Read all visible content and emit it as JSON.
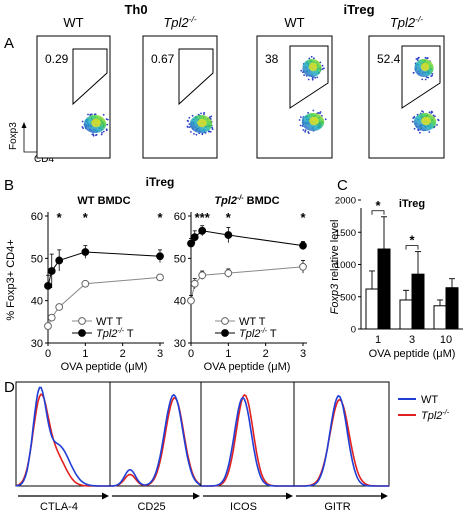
{
  "panels": {
    "A": {
      "letter": "A",
      "header_th0": "Th0",
      "header_itreg": "iTreg",
      "ylabel": "Foxp3",
      "xlabel": "CD4",
      "plots": [
        {
          "title": "WT",
          "italic": false,
          "value": "0.29"
        },
        {
          "title": "Tpl2",
          "sup": "-/-",
          "italic": true,
          "value": "0.67"
        },
        {
          "title": "WT",
          "italic": false,
          "value": "38"
        },
        {
          "title": "Tpl2",
          "sup": "-/-",
          "italic": true,
          "value": "52.4"
        }
      ]
    },
    "B": {
      "letter": "B",
      "header": "iTreg",
      "ylabel": "% Foxp3+ CD4+"
    },
    "C": {
      "letter": "C",
      "title": "iTreg"
    },
    "D": {
      "letter": "D",
      "legend": [
        {
          "label": "WT",
          "color": "#1f3fd6"
        },
        {
          "label": "Tpl2",
          "sup": "-/-",
          "italic": true,
          "color": "#e02020"
        }
      ],
      "markers": [
        "CTLA-4",
        "CD25",
        "ICOS",
        "GITR"
      ]
    }
  },
  "chart_data": [
    {
      "type": "line",
      "title": "WT BMDC",
      "xlabel": "OVA peptide (μM)",
      "ylabel": "% Foxp3+ CD4+",
      "xlim": [
        0,
        3
      ],
      "ylim": [
        30,
        60
      ],
      "xticks": [
        0,
        1,
        2,
        3
      ],
      "yticks": [
        30,
        40,
        50,
        60
      ],
      "x": [
        0,
        0.1,
        0.3,
        1,
        3
      ],
      "series": [
        {
          "name": "WT T",
          "marker": "open-circle",
          "values": [
            34,
            36,
            38.5,
            44,
            45.5
          ],
          "errors": [
            0.6,
            0.6,
            0.6,
            0.6,
            0.6
          ]
        },
        {
          "name": "Tpl2-/- T",
          "marker": "filled-circle",
          "values": [
            43.5,
            47,
            49.5,
            51.5,
            50.5
          ],
          "errors": [
            2.5,
            4,
            2.5,
            1.5,
            1.5
          ]
        }
      ],
      "significance": [
        {
          "x": 0.3,
          "text": "*"
        },
        {
          "x": 1,
          "text": "*"
        },
        {
          "x": 3,
          "text": "*"
        }
      ],
      "legend_placement": "bottom-right"
    },
    {
      "type": "line",
      "title": "Tpl2-/- BMDC",
      "xlabel": "OVA peptide (μM)",
      "xlim": [
        0,
        3
      ],
      "ylim": [
        30,
        60
      ],
      "xticks": [
        0,
        1,
        2,
        3
      ],
      "yticks": [
        30,
        40,
        50,
        60
      ],
      "x": [
        0,
        0.1,
        0.3,
        1,
        3
      ],
      "series": [
        {
          "name": "WT T",
          "marker": "open-circle",
          "values": [
            40,
            44,
            46,
            46.5,
            48
          ],
          "errors": [
            1.2,
            1.2,
            1,
            1,
            1.5
          ]
        },
        {
          "name": "Tpl2-/- T",
          "marker": "filled-circle",
          "values": [
            53.5,
            55,
            56.5,
            55.5,
            53
          ],
          "errors": [
            1.2,
            1.5,
            1.2,
            1.8,
            1
          ]
        }
      ],
      "significance": [
        {
          "x": 0.3,
          "text": "***"
        },
        {
          "x": 1,
          "text": "*"
        },
        {
          "x": 3,
          "text": "*"
        }
      ],
      "legend_placement": "bottom-right"
    },
    {
      "type": "bar",
      "title": "iTreg",
      "xlabel": "OVA peptide (μM)",
      "ylabel": "Foxp3 relative level",
      "categories": [
        "1",
        "3",
        "10"
      ],
      "ylim": [
        0,
        2000
      ],
      "yticks": [
        0,
        500,
        1000,
        1500,
        2000
      ],
      "series": [
        {
          "name": "WT",
          "fill": "#ffffff",
          "values": [
            620,
            450,
            360
          ],
          "errors": [
            280,
            150,
            90
          ]
        },
        {
          "name": "Tpl2-/-",
          "fill": "#000000",
          "values": [
            1240,
            850,
            640
          ],
          "errors": [
            500,
            350,
            140
          ]
        }
      ],
      "significance": [
        {
          "category": "1",
          "text": "*"
        },
        {
          "category": "3",
          "text": "*"
        }
      ]
    }
  ]
}
